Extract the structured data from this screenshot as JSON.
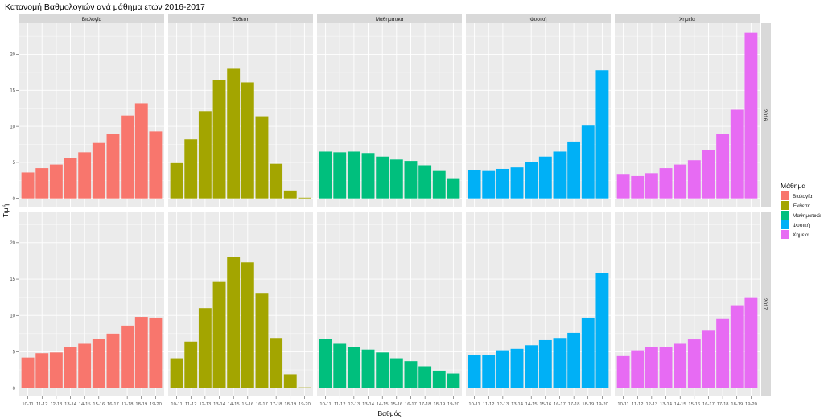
{
  "chart_data": {
    "type": "bar",
    "title": "Κατανομή  Βαθμολογιών ανά μάθημα ετών 2016-2017",
    "xlabel": "Βαθμός",
    "ylabel": "Τιμή",
    "ylim": [
      0,
      24
    ],
    "yticks": [
      0,
      5,
      10,
      15,
      20
    ],
    "grid": true,
    "legend_placement": "right",
    "legend_title": "Μάθημα",
    "categories": [
      "10-11",
      "11-12",
      "12-13",
      "13-14",
      "14-15",
      "15-16",
      "16-17",
      "17-18",
      "18-19",
      "19-20"
    ],
    "facet_columns": [
      "Βιολογία",
      "Έκθεση",
      "Μαθηματικά",
      "Φυσική",
      "Χημεία"
    ],
    "facet_rows": [
      "2016",
      "2017"
    ],
    "series": [
      {
        "name": "Βιολογία",
        "color": "#F8766D",
        "values": {
          "2016": [
            3.6,
            4.2,
            4.7,
            5.6,
            6.4,
            7.7,
            9.0,
            11.5,
            13.2,
            9.3
          ],
          "2017": [
            4.2,
            4.8,
            4.9,
            5.6,
            6.1,
            6.8,
            7.5,
            8.6,
            9.8,
            9.7
          ]
        }
      },
      {
        "name": "Έκθεση",
        "color": "#A3A500",
        "values": {
          "2016": [
            4.9,
            8.2,
            12.1,
            16.4,
            18.0,
            16.1,
            11.4,
            4.8,
            1.1,
            0.1
          ],
          "2017": [
            4.1,
            6.4,
            11.0,
            14.6,
            18.0,
            17.3,
            13.1,
            6.9,
            1.9,
            0.1
          ]
        }
      },
      {
        "name": "Μαθηματικά",
        "color": "#00BF7D",
        "values": {
          "2016": [
            6.5,
            6.4,
            6.5,
            6.3,
            5.8,
            5.4,
            5.2,
            4.6,
            3.8,
            2.8
          ],
          "2017": [
            6.8,
            6.1,
            5.7,
            5.3,
            4.9,
            4.1,
            3.7,
            3.0,
            2.4,
            2.0
          ]
        }
      },
      {
        "name": "Φυσική",
        "color": "#00B0F6",
        "values": {
          "2016": [
            3.9,
            3.8,
            4.1,
            4.3,
            5.0,
            5.8,
            6.5,
            7.9,
            10.1,
            17.8
          ],
          "2017": [
            4.5,
            4.6,
            5.2,
            5.4,
            5.9,
            6.6,
            6.9,
            7.6,
            9.7,
            15.8
          ]
        }
      },
      {
        "name": "Χημεία",
        "color": "#E76BF3",
        "values": {
          "2016": [
            3.4,
            3.1,
            3.5,
            4.2,
            4.7,
            5.3,
            6.7,
            8.9,
            12.3,
            23.0
          ],
          "2017": [
            4.4,
            5.2,
            5.6,
            5.7,
            6.1,
            6.7,
            8.0,
            9.5,
            11.4,
            12.5
          ]
        }
      }
    ]
  }
}
